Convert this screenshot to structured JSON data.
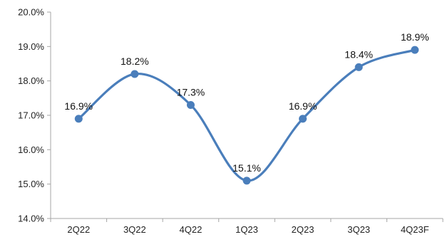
{
  "chart_data": {
    "type": "line",
    "title": "",
    "xlabel": "",
    "ylabel": "",
    "categories": [
      "2Q22",
      "3Q22",
      "4Q22",
      "1Q23",
      "2Q23",
      "3Q23",
      "4Q23F"
    ],
    "series": [
      {
        "values": [
          16.9,
          18.2,
          17.3,
          15.1,
          16.9,
          18.4,
          18.9
        ],
        "data_labels": [
          "16.9%",
          "18.2%",
          "17.3%",
          "15.1%",
          "16.9%",
          "18.4%",
          "18.9%"
        ],
        "color": "#4a7ebb"
      }
    ],
    "ylim": [
      14.0,
      20.0
    ],
    "y_ticks": [
      14.0,
      15.0,
      16.0,
      17.0,
      18.0,
      19.0,
      20.0
    ],
    "y_tick_labels": [
      "14.0%",
      "15.0%",
      "16.0%",
      "17.0%",
      "18.0%",
      "19.0%",
      "20.0%"
    ],
    "grid": false,
    "legend": "none",
    "smooth": true,
    "markers": "circle",
    "colors": {
      "line": "#4a7ebb",
      "axis": "#a6a6a6",
      "text": "#222222"
    }
  }
}
